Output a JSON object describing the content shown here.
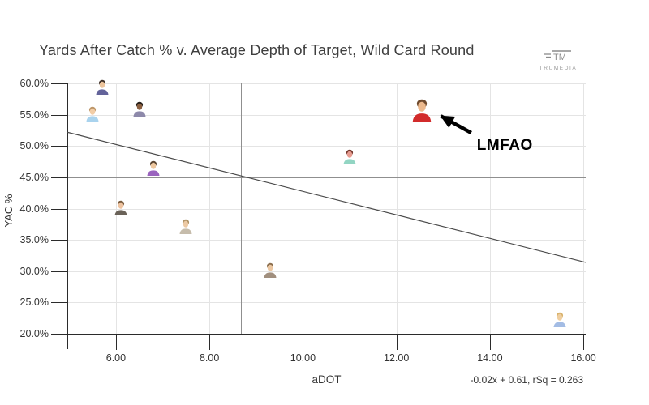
{
  "header": {
    "title": "Yards After Catch % v. Average Depth of Target, Wild Card Round"
  },
  "logo": {
    "mark": "TM",
    "name": "TRUMEDIA"
  },
  "chart_data": {
    "type": "scatter",
    "title": "Yards After Catch % v. Average Depth of Target, Wild Card Round",
    "xlabel": "aDOT",
    "ylabel": "YAC %",
    "xlim": [
      4.96,
      16.05
    ],
    "ylim": [
      20,
      60
    ],
    "grid": true,
    "xticks": {
      "values": [
        6,
        8,
        10,
        12,
        14,
        16
      ],
      "labels": [
        "6.00",
        "8.00",
        "10.00",
        "12.00",
        "14.00",
        "16.00"
      ]
    },
    "yticks": {
      "values": [
        20,
        25,
        30,
        35,
        40,
        45,
        50,
        55,
        60
      ],
      "labels": [
        "20.0%",
        "25.0%",
        "30.0%",
        "35.0%",
        "40.0%",
        "45.0%",
        "50.0%",
        "55.0%",
        "60.0%"
      ]
    },
    "mean_lines": {
      "x": 8.67,
      "y": 45
    },
    "trendline": {
      "x1": 4.96,
      "y1": 52.2,
      "x2": 16.05,
      "y2": 31.4,
      "label": "-0.02x + 0.61, rSq = 0.263"
    },
    "points": [
      {
        "aDOT": 5.7,
        "yac": 59.5,
        "jersey": "#63639a",
        "skin": "#ecc49c",
        "hair": "#42342b",
        "size": 20
      },
      {
        "aDOT": 5.5,
        "yac": 55.2,
        "jersey": "#a9d3ee",
        "skin": "#f2cda6",
        "hair": "#bd9668",
        "size": 20
      },
      {
        "aDOT": 6.5,
        "yac": 56.0,
        "jersey": "#8d89aa",
        "skin": "#8a5f40",
        "hair": "#241d18",
        "size": 20
      },
      {
        "aDOT": 6.8,
        "yac": 46.5,
        "jersey": "#9a63be",
        "skin": "#eec8a0",
        "hair": "#5b4632",
        "size": 20
      },
      {
        "aDOT": 6.1,
        "yac": 40.2,
        "jersey": "#6a6258",
        "skin": "#eec3a0",
        "hair": "#7a5c3e",
        "size": 20
      },
      {
        "aDOT": 7.5,
        "yac": 37.2,
        "jersey": "#c6bcab",
        "skin": "#ecc9a4",
        "hair": "#b09468",
        "size": 20
      },
      {
        "aDOT": 9.3,
        "yac": 30.2,
        "jersey": "#a18f7e",
        "skin": "#ebc7a2",
        "hair": "#8c6f4e",
        "size": 20
      },
      {
        "aDOT": 11.0,
        "yac": 48.4,
        "jersey": "#92d5c3",
        "skin": "#e79c90",
        "hair": "#74362c",
        "size": 20
      },
      {
        "aDOT": 12.55,
        "yac": 55.8,
        "jersey": "#d22b2b",
        "skin": "#ecb98d",
        "hair": "#6f4a2d",
        "size": 30,
        "highlight": true
      },
      {
        "aDOT": 15.5,
        "yac": 22.3,
        "jersey": "#a3bce4",
        "skin": "#efce9f",
        "hair": "#d8b26c",
        "size": 20
      }
    ],
    "annotation": {
      "label": "LMFAO",
      "tip": [
        12.95,
        54.8
      ],
      "tail": [
        13.6,
        52.1
      ],
      "label_pos": [
        13.72,
        51.5
      ]
    },
    "colors": {
      "grid": "#e4e4e4",
      "axis": "#2b2b2b",
      "mean_line": "#8f8f8f",
      "trend_line": "#4a4a4a",
      "annotation": "#000000"
    }
  }
}
